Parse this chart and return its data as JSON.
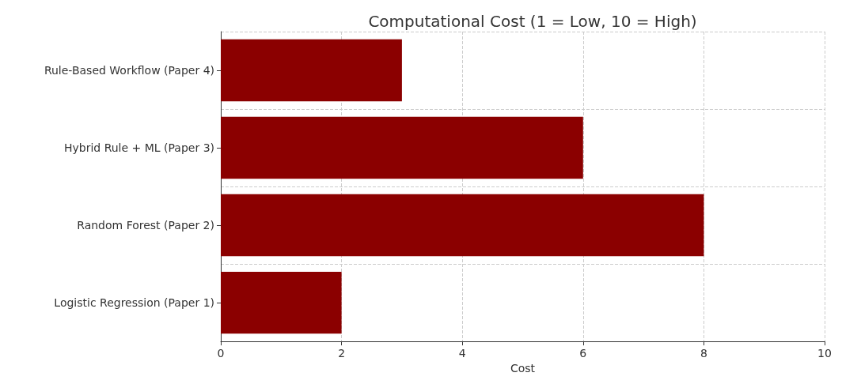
{
  "chart_data": {
    "type": "bar",
    "orientation": "horizontal",
    "title": "Computational Cost (1 = Low, 10 = High)",
    "xlabel": "Cost",
    "categories": [
      "Rule-Based Workflow (Paper 4)",
      "Hybrid Rule + ML (Paper 3)",
      "Random Forest (Paper 2)",
      "Logistic Regression (Paper 1)"
    ],
    "values": [
      3,
      6,
      8,
      2
    ],
    "color": "#8b0000",
    "xlim": [
      0,
      10
    ],
    "xticks": [
      0,
      2,
      4,
      6,
      8,
      10
    ],
    "grid": true
  }
}
